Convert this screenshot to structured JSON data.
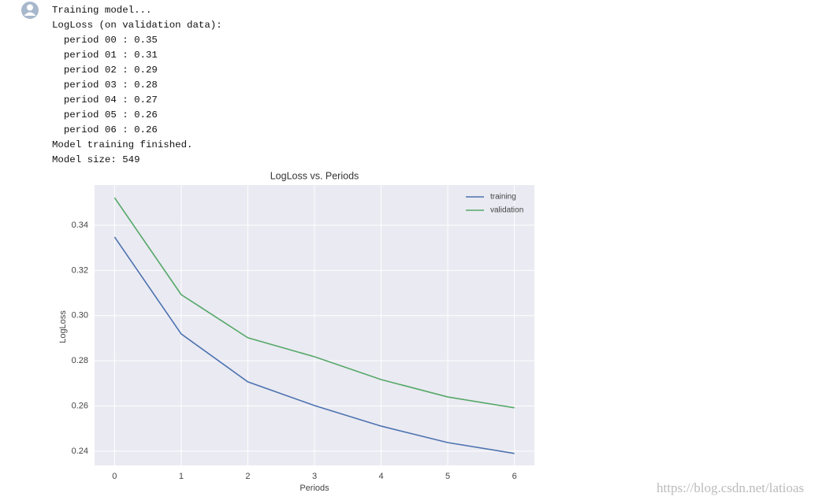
{
  "output_lines": [
    "Training model...",
    "LogLoss (on validation data):",
    "  period 00 : 0.35",
    "  period 01 : 0.31",
    "  period 02 : 0.29",
    "  period 03 : 0.28",
    "  period 04 : 0.27",
    "  period 05 : 0.26",
    "  period 06 : 0.26",
    "Model training finished.",
    "Model size: 549"
  ],
  "watermark": "https://blog.csdn.net/latioas",
  "chart_data": {
    "type": "line",
    "title": "LogLoss vs. Periods",
    "x_label": "Periods",
    "y_label": "LogLoss",
    "x": [
      0,
      1,
      2,
      3,
      4,
      5,
      6
    ],
    "series": [
      {
        "name": "training",
        "color": "#4c72b0",
        "values": [
          0.3348,
          0.2919,
          0.2707,
          0.2602,
          0.2511,
          0.2438,
          0.239
        ]
      },
      {
        "name": "validation",
        "color": "#55a868",
        "values": [
          0.3522,
          0.3093,
          0.2902,
          0.2818,
          0.2717,
          0.264,
          0.2592
        ]
      }
    ],
    "xlim": [
      -0.3,
      6.3
    ],
    "xticks": [
      0,
      1,
      2,
      3,
      4,
      5,
      6
    ],
    "ylim": [
      0.2337,
      0.3578
    ],
    "yticks": [
      0.24,
      0.26,
      0.28,
      {
        "value": 0.3,
        "label": "0.30"
      },
      0.32,
      0.34
    ],
    "grid": true,
    "legend": "upper right"
  }
}
